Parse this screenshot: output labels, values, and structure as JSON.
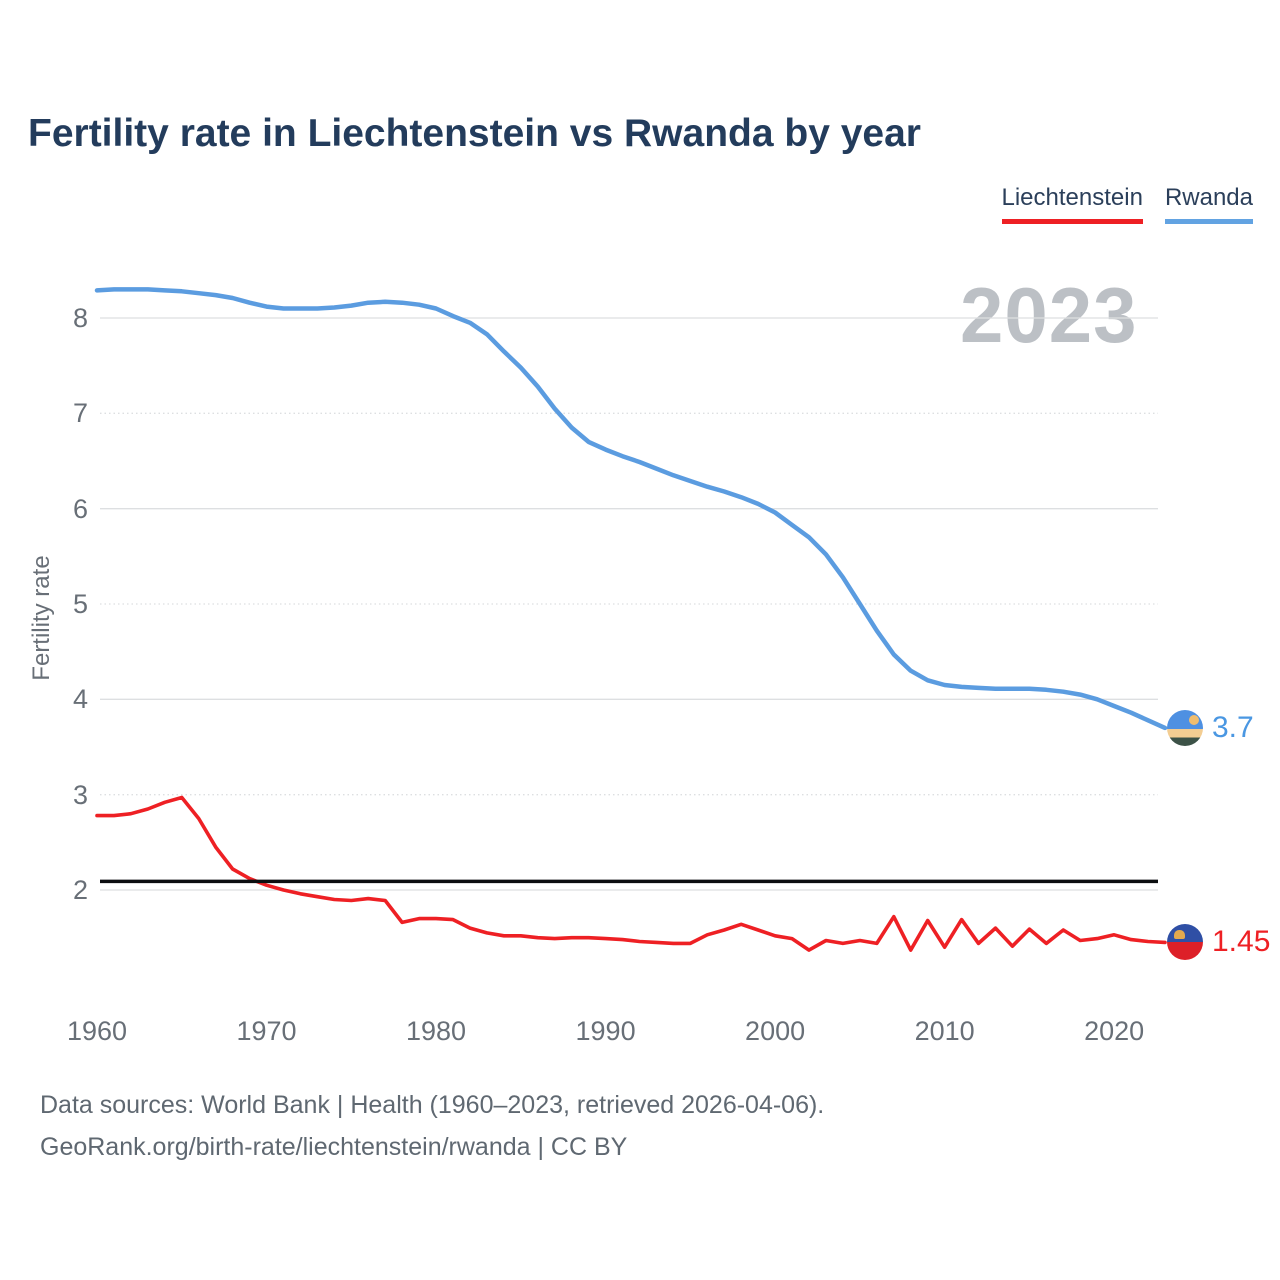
{
  "header": {
    "title": "Fertility rate in Liechtenstein vs Rwanda by year"
  },
  "legend": {
    "items": [
      {
        "label": "Liechtenstein",
        "color": "#ee2024"
      },
      {
        "label": "Rwanda",
        "color": "#62a3e2"
      }
    ]
  },
  "watermark": {
    "year": "2023"
  },
  "chart_data": {
    "type": "line",
    "title": "Fertility rate in Liechtenstein vs Rwanda by year",
    "xlabel": "",
    "ylabel": "Fertility rate",
    "grid": "horizontal",
    "legend_position": "top-right",
    "xlim": [
      1960,
      2023
    ],
    "ylim": [
      1.1,
      8.6
    ],
    "x_ticks": [
      1960,
      1970,
      1980,
      1990,
      2000,
      2010,
      2020
    ],
    "y_ticks": [
      2,
      3,
      4,
      5,
      6,
      7,
      8
    ],
    "years": [
      1960,
      1961,
      1962,
      1963,
      1964,
      1965,
      1966,
      1967,
      1968,
      1969,
      1970,
      1971,
      1972,
      1973,
      1974,
      1975,
      1976,
      1977,
      1978,
      1979,
      1980,
      1981,
      1982,
      1983,
      1984,
      1985,
      1986,
      1987,
      1988,
      1989,
      1990,
      1991,
      1992,
      1993,
      1994,
      1995,
      1996,
      1997,
      1998,
      1999,
      2000,
      2001,
      2002,
      2003,
      2004,
      2005,
      2006,
      2007,
      2008,
      2009,
      2010,
      2011,
      2012,
      2013,
      2014,
      2015,
      2016,
      2017,
      2018,
      2019,
      2020,
      2021,
      2022,
      2023
    ],
    "series": [
      {
        "name": "Liechtenstein",
        "color": "#ee2024",
        "end_value_label": "1.45",
        "flag_icon": "liechtenstein-flag-icon",
        "values": [
          2.78,
          2.78,
          2.8,
          2.85,
          2.92,
          2.97,
          2.75,
          2.45,
          2.22,
          2.12,
          2.05,
          2.0,
          1.96,
          1.93,
          1.9,
          1.89,
          1.91,
          1.89,
          1.66,
          1.7,
          1.7,
          1.69,
          1.6,
          1.55,
          1.52,
          1.52,
          1.5,
          1.49,
          1.5,
          1.5,
          1.49,
          1.48,
          1.46,
          1.45,
          1.44,
          1.44,
          1.53,
          1.58,
          1.64,
          1.58,
          1.52,
          1.49,
          1.37,
          1.47,
          1.44,
          1.47,
          1.44,
          1.72,
          1.37,
          1.68,
          1.4,
          1.69,
          1.44,
          1.6,
          1.41,
          1.59,
          1.44,
          1.58,
          1.47,
          1.49,
          1.53,
          1.48,
          1.46,
          1.45
        ]
      },
      {
        "name": "Rwanda",
        "color": "#5b9ce0",
        "end_value_label": "3.7",
        "flag_icon": "rwanda-flag-icon",
        "values": [
          8.29,
          8.3,
          8.3,
          8.3,
          8.29,
          8.28,
          8.26,
          8.24,
          8.21,
          8.16,
          8.12,
          8.1,
          8.1,
          8.1,
          8.11,
          8.13,
          8.16,
          8.17,
          8.16,
          8.14,
          8.1,
          8.02,
          7.95,
          7.83,
          7.65,
          7.48,
          7.28,
          7.05,
          6.85,
          6.7,
          6.62,
          6.55,
          6.49,
          6.42,
          6.35,
          6.29,
          6.23,
          6.18,
          6.12,
          6.05,
          5.96,
          5.83,
          5.7,
          5.52,
          5.28,
          5.0,
          4.72,
          4.47,
          4.3,
          4.2,
          4.15,
          4.13,
          4.12,
          4.11,
          4.11,
          4.11,
          4.1,
          4.08,
          4.05,
          4.0,
          3.93,
          3.86,
          3.78,
          3.7
        ]
      }
    ],
    "reference_line": {
      "value": 2.09,
      "color": "#0c0e10"
    }
  },
  "axis": {
    "y_label": "Fertility rate"
  },
  "footer": {
    "line1": "Data sources: World Bank | Health (1960–2023, retrieved 2026-04-06).",
    "line2": "GeoRank.org/birth-rate/liechtenstein/rwanda | CC BY"
  }
}
